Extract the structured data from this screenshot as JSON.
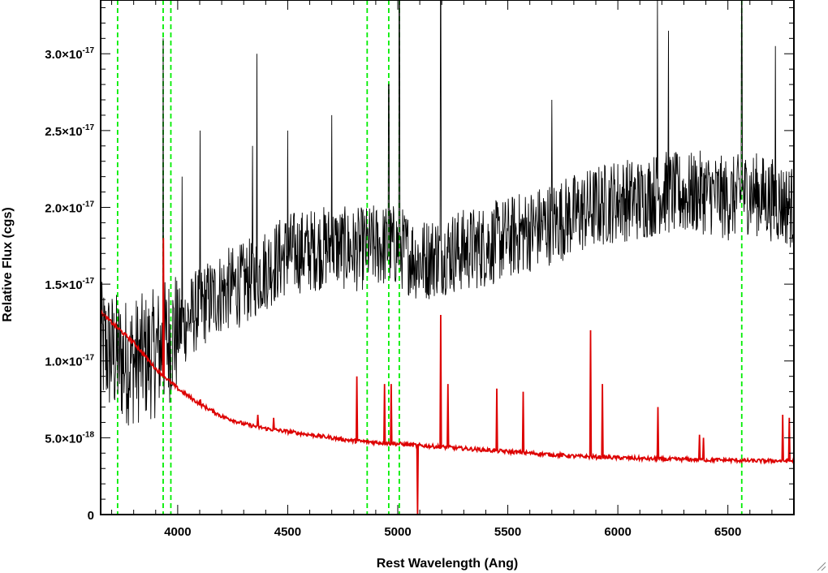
{
  "chart_data": {
    "type": "line",
    "title": "",
    "xlabel": "Rest Wavelength (Ang)",
    "ylabel": "Relative Flux (cgs)",
    "xlim": [
      3650,
      6800
    ],
    "ylim": [
      0,
      3.35e-17
    ],
    "xticks": [
      {
        "value": 4000,
        "label": "4000"
      },
      {
        "value": 4500,
        "label": "4500"
      },
      {
        "value": 5000,
        "label": "5000"
      },
      {
        "value": 5500,
        "label": "5500"
      },
      {
        "value": 6000,
        "label": "6000"
      },
      {
        "value": 6500,
        "label": "6500"
      }
    ],
    "yticks": [
      {
        "value": 0,
        "mantissa": "0",
        "exponent": ""
      },
      {
        "value": 5e-18,
        "mantissa": "5.0×10",
        "exponent": "-18"
      },
      {
        "value": 1e-17,
        "mantissa": "1.0×10",
        "exponent": "-17"
      },
      {
        "value": 1.5e-17,
        "mantissa": "1.5×10",
        "exponent": "-17"
      },
      {
        "value": 2e-17,
        "mantissa": "2.0×10",
        "exponent": "-17"
      },
      {
        "value": 2.5e-17,
        "mantissa": "2.5×10",
        "exponent": "-17"
      },
      {
        "value": 3e-17,
        "mantissa": "3.0×10",
        "exponent": "-17"
      }
    ],
    "vertical_markers": {
      "color": "#00ee00",
      "style": "dashed",
      "x": [
        3727,
        3934,
        3969,
        4861,
        4959,
        5007,
        6563
      ]
    },
    "series": [
      {
        "color": "#000000",
        "style": "noisy-spectrum",
        "points": [
          [
            3650,
            1.1e-17
          ],
          [
            3700,
            1.05e-17
          ],
          [
            3750,
            1e-17
          ],
          [
            3800,
            1e-17
          ],
          [
            3900,
            1.05e-17
          ],
          [
            4000,
            1.2e-17
          ],
          [
            4100,
            1.35e-17
          ],
          [
            4200,
            1.45e-17
          ],
          [
            4300,
            1.5e-17
          ],
          [
            4400,
            1.6e-17
          ],
          [
            4500,
            1.7e-17
          ],
          [
            4600,
            1.72e-17
          ],
          [
            4700,
            1.75e-17
          ],
          [
            4800,
            1.72e-17
          ],
          [
            4900,
            1.75e-17
          ],
          [
            5000,
            1.75e-17
          ],
          [
            5100,
            1.65e-17
          ],
          [
            5200,
            1.7e-17
          ],
          [
            5300,
            1.72e-17
          ],
          [
            5400,
            1.75e-17
          ],
          [
            5500,
            1.8e-17
          ],
          [
            5600,
            1.85e-17
          ],
          [
            5700,
            1.9e-17
          ],
          [
            5800,
            1.95e-17
          ],
          [
            5900,
            2e-17
          ],
          [
            6000,
            2.05e-17
          ],
          [
            6100,
            2.05e-17
          ],
          [
            6200,
            2.1e-17
          ],
          [
            6300,
            2.08e-17
          ],
          [
            6400,
            2.1e-17
          ],
          [
            6500,
            2.05e-17
          ],
          [
            6600,
            2.1e-17
          ],
          [
            6700,
            2.05e-17
          ],
          [
            6800,
            2e-17
          ]
        ],
        "spikes": [
          [
            3934,
            3.1e-17
          ],
          [
            4020,
            2.2e-17
          ],
          [
            4102,
            2.5e-17
          ],
          [
            4340,
            2.4e-17
          ],
          [
            4360,
            3e-17
          ],
          [
            4500,
            2.5e-17
          ],
          [
            4700,
            2.6e-17
          ],
          [
            4959,
            2.8e-17
          ],
          [
            5007,
            3.35e-17
          ],
          [
            5195,
            3.35e-17
          ],
          [
            5700,
            2.7e-17
          ],
          [
            6180,
            3.35e-17
          ],
          [
            6230,
            3.15e-17
          ],
          [
            6563,
            3.35e-17
          ],
          [
            6716,
            3.05e-17
          ]
        ]
      },
      {
        "color": "#dd0000",
        "style": "model-continuum",
        "points": [
          [
            3650,
            1.32e-17
          ],
          [
            3700,
            1.25e-17
          ],
          [
            3800,
            1.12e-17
          ],
          [
            3900,
            9.5e-18
          ],
          [
            4000,
            8.2e-18
          ],
          [
            4100,
            7.2e-18
          ],
          [
            4200,
            6.4e-18
          ],
          [
            4300,
            5.9e-18
          ],
          [
            4400,
            5.6e-18
          ],
          [
            4500,
            5.4e-18
          ],
          [
            4600,
            5.2e-18
          ],
          [
            4700,
            5e-18
          ],
          [
            4800,
            4.8e-18
          ],
          [
            4900,
            4.7e-18
          ],
          [
            5000,
            4.6e-18
          ],
          [
            5100,
            4.5e-18
          ],
          [
            5200,
            4.4e-18
          ],
          [
            5300,
            4.3e-18
          ],
          [
            5400,
            4.2e-18
          ],
          [
            5500,
            4.1e-18
          ],
          [
            5600,
            4e-18
          ],
          [
            5700,
            3.9e-18
          ],
          [
            5800,
            3.8e-18
          ],
          [
            5900,
            3.75e-18
          ],
          [
            6000,
            3.7e-18
          ],
          [
            6100,
            3.65e-18
          ],
          [
            6200,
            3.6e-18
          ],
          [
            6300,
            3.6e-18
          ],
          [
            6400,
            3.55e-18
          ],
          [
            6500,
            3.55e-18
          ],
          [
            6600,
            3.5e-18
          ],
          [
            6700,
            3.5e-18
          ],
          [
            6800,
            3.5e-18
          ]
        ],
        "lines": [
          [
            3934,
            1.8e-17
          ],
          [
            4102,
            7.5e-18
          ],
          [
            4363,
            6.5e-18
          ],
          [
            4437,
            6.3e-18
          ],
          [
            4813,
            9e-18
          ],
          [
            4940,
            8.5e-18
          ],
          [
            4970,
            8.5e-18
          ],
          [
            5195,
            1.3e-17
          ],
          [
            5228,
            8.5e-18
          ],
          [
            5450,
            8.2e-18
          ],
          [
            5570,
            8e-18
          ],
          [
            5876,
            1.2e-17
          ],
          [
            5930,
            8.5e-18
          ],
          [
            6183,
            7e-18
          ],
          [
            6370,
            5.2e-18
          ],
          [
            6390,
            5e-18
          ],
          [
            6748,
            6.5e-18
          ],
          [
            6780,
            6.3e-18
          ]
        ],
        "dips": [
          [
            5090,
            0
          ]
        ]
      }
    ]
  }
}
